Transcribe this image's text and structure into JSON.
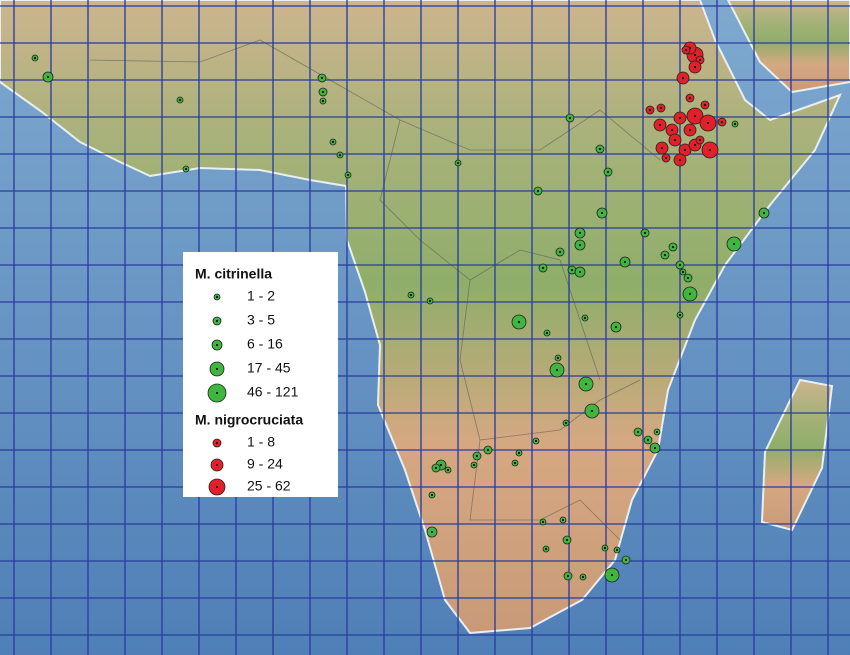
{
  "legend": {
    "groups": [
      {
        "title": "M. citrinella",
        "items": [
          "1 - 2",
          "3 - 5",
          "6 - 16",
          "17 - 45",
          "46 - 121"
        ]
      },
      {
        "title": "M. nigrocruciata",
        "items": [
          "1 - 8",
          "9 - 24",
          "25 - 62"
        ]
      }
    ]
  }
}
